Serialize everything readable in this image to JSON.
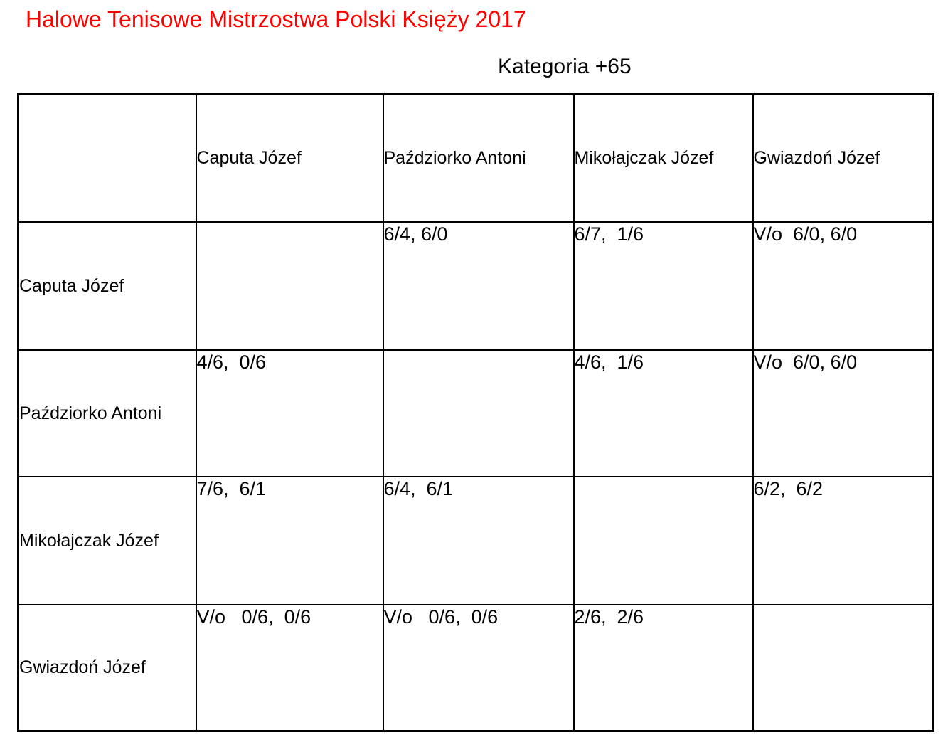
{
  "page": {
    "title": "Halowe Tenisowe Mistrzostwa Polski Księży 2017",
    "subtitle": "Kategoria +65"
  },
  "colors": {
    "title": "#ff0000",
    "diagonal_fill": "#00b0f0",
    "border": "#000000"
  },
  "matrix": {
    "col_headers": [
      "Caputa Józef",
      "Paździorko Antoni",
      "Mikołajczak Józef",
      "Gwiazdoń Józef"
    ],
    "rows": [
      {
        "label": "Caputa Józef",
        "scores": [
          null,
          "6/4, 6/0",
          "6/7,  1/6",
          "V/o  6/0, 6/0"
        ]
      },
      {
        "label": "Paździorko Antoni",
        "scores": [
          "4/6,  0/6",
          null,
          "4/6,  1/6",
          "V/o  6/0, 6/0"
        ]
      },
      {
        "label": "Mikołajczak Józef",
        "scores": [
          "7/6,  6/1",
          "6/4,  6/1",
          null,
          "6/2,  6/2"
        ]
      },
      {
        "label": "Gwiazdoń Józef",
        "scores": [
          "V/o   0/6,  0/6",
          "V/o   0/6,  0/6",
          "2/6,  2/6",
          null
        ]
      }
    ]
  }
}
